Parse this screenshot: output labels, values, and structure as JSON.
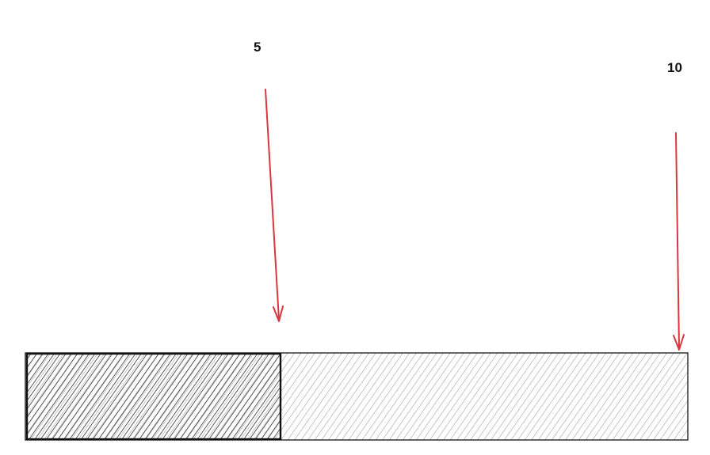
{
  "markers": [
    {
      "label": "5",
      "value": 5
    },
    {
      "label": "10",
      "value": 10
    }
  ],
  "bar": {
    "filled": 5,
    "total": 10
  },
  "colors": {
    "arrow": "#d9363e",
    "filled_hatch": "#333333",
    "empty_hatch": "#9a9a9a",
    "outline": "#333333",
    "divider": "#111111"
  }
}
